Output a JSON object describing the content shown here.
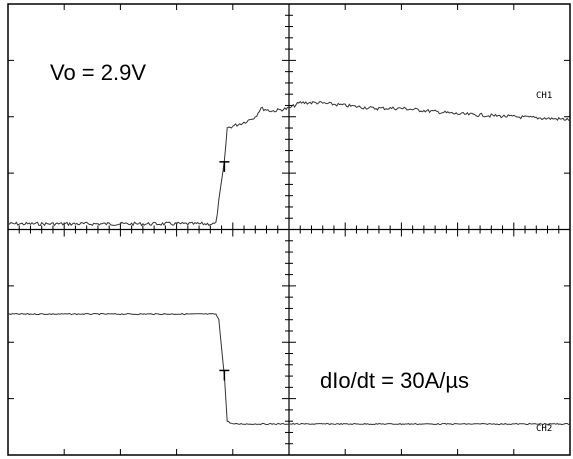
{
  "chart_data": {
    "type": "line",
    "title": "",
    "xlabel": "",
    "ylabel": "",
    "grid": false,
    "x_divisions": 10,
    "y_divisions": 8,
    "x_range_div": [
      -5,
      5
    ],
    "y_range_div": [
      -4,
      4
    ],
    "annotations": {
      "top": "Vo = 2.9V",
      "bottom": "dIo/dt = 30A/µs"
    },
    "series": [
      {
        "name": "CH1",
        "x_div": [
          -5.0,
          -1.3,
          -1.25,
          -1.15,
          -1.1,
          -0.95,
          -0.8,
          -0.6,
          -0.5,
          -0.3,
          0.0,
          0.2,
          0.5,
          1.0,
          1.5,
          2.0,
          2.5,
          3.0,
          4.0,
          5.0
        ],
        "y_div": [
          0.1,
          0.1,
          0.5,
          1.2,
          1.8,
          1.85,
          1.9,
          2.0,
          2.15,
          2.1,
          2.15,
          2.25,
          2.25,
          2.2,
          2.15,
          2.15,
          2.1,
          2.05,
          2.0,
          1.95
        ]
      },
      {
        "name": "CH2",
        "x_div": [
          -5.0,
          -1.3,
          -1.25,
          -1.15,
          -1.1,
          -1.0,
          -0.5,
          0.0,
          2.0,
          4.0,
          5.0
        ],
        "y_div": [
          -1.5,
          -1.5,
          -1.6,
          -2.6,
          -3.4,
          -3.45,
          -3.45,
          -3.45,
          -3.45,
          -3.45,
          -3.45
        ]
      }
    ],
    "colors": {
      "trace": "#333333",
      "axis": "#000000"
    }
  }
}
